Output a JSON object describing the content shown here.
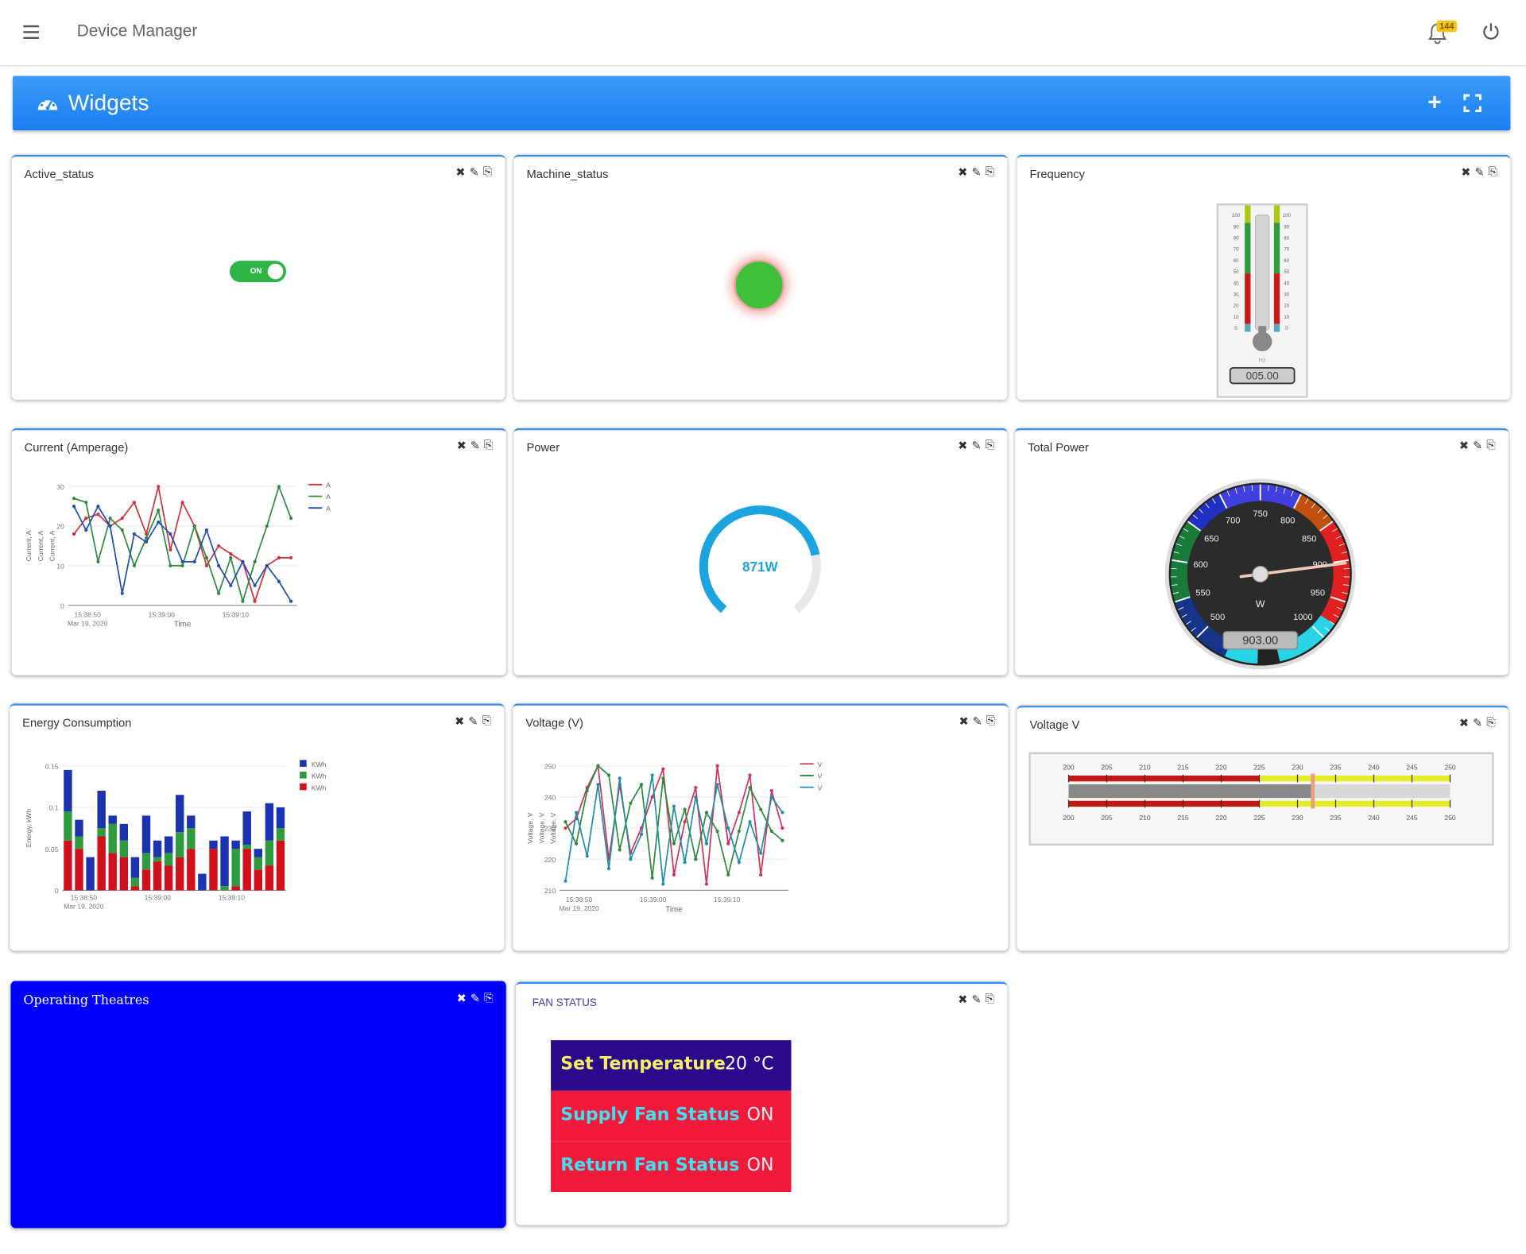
{
  "app": {
    "title": "Device Manager",
    "notification_count": "144"
  },
  "header": {
    "title": "Widgets"
  },
  "tools": {
    "close": "✖",
    "edit": "✎",
    "copy": "⎘"
  },
  "widgets": {
    "active_status": {
      "title": "Active_status",
      "toggle_label": "ON"
    },
    "machine_status": {
      "title": "Machine_status"
    },
    "frequency": {
      "title": "Frequency",
      "unit": "Hz",
      "readout": "005.00",
      "value": 5,
      "ticks": [
        "100",
        "90",
        "80",
        "70",
        "60",
        "50",
        "40",
        "30",
        "20",
        "10",
        "0"
      ]
    },
    "current": {
      "title": "Current (Amperage)"
    },
    "power": {
      "title": "Power",
      "value_text": "871W",
      "value": 871
    },
    "total_power": {
      "title": "Total Power",
      "unit": "W",
      "readout": "903.00",
      "value": 903,
      "ticks": [
        "500",
        "550",
        "600",
        "650",
        "700",
        "750",
        "800",
        "850",
        "900",
        "950",
        "1000"
      ]
    },
    "energy": {
      "title": "Energy Consumption"
    },
    "voltage_chart": {
      "title": "Voltage (V)"
    },
    "voltage_bar": {
      "title": "Voltage V",
      "value": 227,
      "ticks": [
        "200",
        "205",
        "210",
        "215",
        "220",
        "225",
        "230",
        "235",
        "240",
        "245",
        "250"
      ]
    },
    "operating_theatres": {
      "title": "Operating Theatres"
    },
    "fan_status": {
      "title": "FAN STATUS",
      "rows": [
        {
          "label": "Set Temperature",
          "value": "20 °C"
        },
        {
          "label": "Supply Fan Status",
          "value": "ON"
        },
        {
          "label": "Return Fan Status",
          "value": "ON"
        }
      ]
    }
  },
  "chart_data": [
    {
      "type": "line",
      "id": "current",
      "x_ticks": [
        "15:38:50\nMar 19, 2020",
        "15:39:00",
        "15:39:10"
      ],
      "xlabel": "Time",
      "ylabels": [
        "Current, A",
        "Current, A",
        "Current, A"
      ],
      "y_ticks": [
        "0",
        "10",
        "20",
        "30"
      ],
      "ylim": [
        0,
        30
      ],
      "series": [
        {
          "name": "A",
          "color": "#d0323c",
          "values": [
            18,
            22,
            23,
            20,
            22,
            26,
            18,
            30,
            14,
            26,
            20,
            10,
            15,
            13,
            11,
            1,
            10,
            12,
            12
          ]
        },
        {
          "name": "A",
          "color": "#2e8b3e",
          "values": [
            27,
            26,
            11,
            22,
            19,
            10,
            17,
            24,
            10,
            10,
            20,
            12,
            3,
            12,
            1,
            11,
            20,
            30,
            22
          ]
        },
        {
          "name": "A",
          "color": "#1f4fb0",
          "values": [
            25,
            19,
            25,
            20,
            3,
            18,
            16,
            21,
            18,
            11,
            11,
            19,
            10,
            5,
            11,
            5,
            10,
            6,
            1
          ]
        }
      ]
    },
    {
      "type": "bar",
      "id": "energy",
      "x_ticks": [
        "15:38:50\nMar 19, 2020",
        "15:39:00",
        "15:39:10"
      ],
      "ylabel": "Energy, kWh",
      "y_ticks": [
        "0",
        "0.05",
        "0.1",
        "0.15"
      ],
      "ylim": [
        0,
        0.15
      ],
      "series": [
        {
          "name": "KWh",
          "color": "#1b33b0",
          "values": [
            0.05,
            0.02,
            0.04,
            0.045,
            0.01,
            0.02,
            0.025,
            0.045,
            0.02,
            0.02,
            0.045,
            0.015,
            0.02,
            0.01,
            0.06,
            0.01,
            0.04,
            0.01,
            0.045,
            0.025
          ]
        },
        {
          "name": "KWh",
          "color": "#2e9b3e",
          "values": [
            0.035,
            0.015,
            0.0,
            0.01,
            0.035,
            0.02,
            0.01,
            0.02,
            0.005,
            0.015,
            0.03,
            0.025,
            0.0,
            0.0,
            0.005,
            0.045,
            0.005,
            0.015,
            0.03,
            0.015
          ]
        },
        {
          "name": "KWh",
          "color": "#d0101a",
          "values": [
            0.06,
            0.05,
            0.0,
            0.065,
            0.045,
            0.04,
            0.005,
            0.025,
            0.035,
            0.03,
            0.04,
            0.05,
            0.0,
            0.05,
            0.0,
            0.005,
            0.05,
            0.025,
            0.03,
            0.06
          ]
        }
      ]
    },
    {
      "type": "line",
      "id": "voltage",
      "x_ticks": [
        "15:38:50\nMar 19, 2020",
        "15:39:00",
        "15:39:10"
      ],
      "xlabel": "Time",
      "ylabels": [
        "Voltage, V",
        "Voltage, V",
        "Voltage, V"
      ],
      "y_ticks": [
        "210",
        "220",
        "230",
        "240",
        "250"
      ],
      "ylim": [
        210,
        250
      ],
      "series": [
        {
          "name": "V",
          "color": "#d0325a",
          "values": [
            230,
            233,
            243,
            250,
            220,
            244,
            222,
            230,
            240,
            249,
            215,
            232,
            243,
            212,
            250,
            225,
            235,
            247,
            215,
            242,
            230
          ]
        },
        {
          "name": "V",
          "color": "#2e8b3e",
          "values": [
            232,
            225,
            242,
            250,
            247,
            223,
            238,
            244,
            214,
            246,
            225,
            236,
            220,
            235,
            229,
            215,
            229,
            243,
            236,
            229,
            226
          ]
        },
        {
          "name": "V",
          "color": "#1f8fa8",
          "values": [
            213,
            235,
            221,
            244,
            217,
            246,
            220,
            228,
            247,
            212,
            237,
            219,
            240,
            225,
            244,
            230,
            219,
            232,
            222,
            240,
            235
          ]
        }
      ]
    }
  ]
}
